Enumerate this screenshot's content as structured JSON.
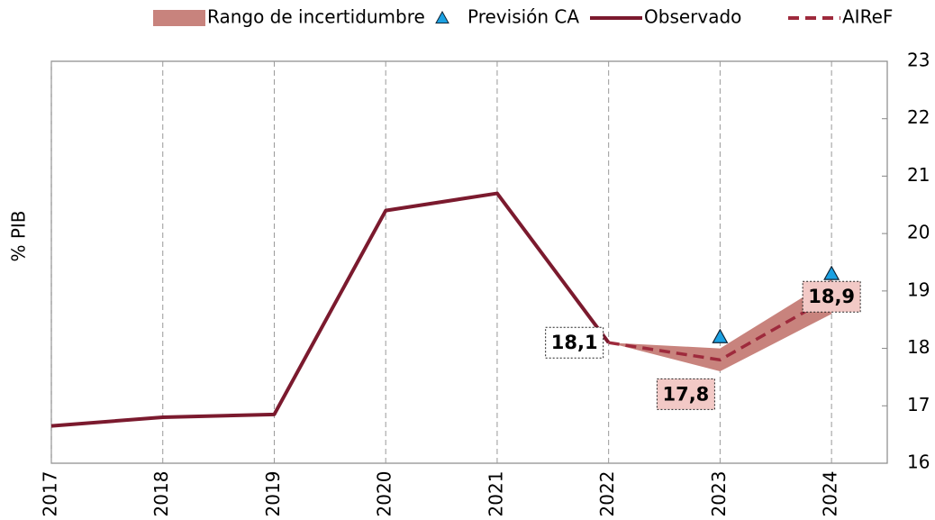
{
  "chart_data": {
    "type": "line",
    "y_label": "% PIB",
    "x": [
      2017,
      2018,
      2019,
      2020,
      2021,
      2022,
      2023,
      2024
    ],
    "xlim": [
      2017,
      2024.5
    ],
    "xticks": [
      2017,
      2018,
      2019,
      2020,
      2021,
      2022,
      2023,
      2024
    ],
    "ylim": [
      16,
      23
    ],
    "yticks": [
      16,
      17,
      18,
      19,
      20,
      21,
      22,
      23
    ],
    "y_axis_side": "right",
    "grid": "x",
    "legend": "top",
    "band": {
      "name": "Rango de incertidumbre",
      "color": "#c8837d",
      "low": [
        null,
        null,
        null,
        null,
        null,
        18.1,
        17.6,
        18.6
      ],
      "high": [
        null,
        null,
        null,
        null,
        null,
        18.1,
        18.0,
        19.2
      ]
    },
    "series": [
      {
        "name": "Previsión CA",
        "color": "#1ba1e2",
        "style": "triangle",
        "values": [
          null,
          null,
          null,
          null,
          null,
          null,
          18.2,
          19.3
        ]
      },
      {
        "name": "Observado",
        "color": "#7b1a2e",
        "style": "solid",
        "values": [
          16.65,
          16.8,
          16.85,
          20.4,
          20.7,
          18.1,
          null,
          null
        ]
      },
      {
        "name": "AIReF",
        "color": "#9e2a3c",
        "style": "dashed",
        "values": [
          null,
          null,
          null,
          null,
          null,
          18.1,
          17.8,
          18.9
        ],
        "value_labels": [
          null,
          null,
          null,
          null,
          null,
          "18,1",
          "17,8",
          "18,9"
        ]
      }
    ]
  }
}
